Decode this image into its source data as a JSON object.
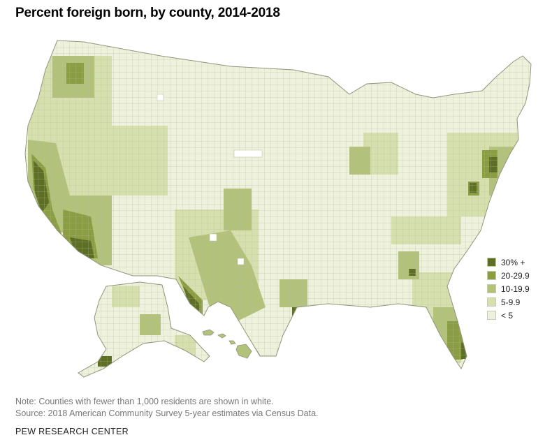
{
  "title": "Percent foreign born, by county, 2014-2018",
  "legend": [
    {
      "label": "30% +",
      "color": "#5d6e25"
    },
    {
      "label": "20-29.9",
      "color": "#8a9d42"
    },
    {
      "label": "10-19.9",
      "color": "#b3c27a"
    },
    {
      "label": "5-9.9",
      "color": "#d6dfae"
    },
    {
      "label": "< 5",
      "color": "#eef1dc"
    }
  ],
  "colors": {
    "county_border": "#a9ae93",
    "no_data": "#ffffff"
  },
  "note": "Note: Counties with fewer than 1,000 residents are shown in white.",
  "source": "Source: 2018 American Community Survey 5-year estimates via Census Data.",
  "brand": "PEW RESEARCH CENTER"
}
